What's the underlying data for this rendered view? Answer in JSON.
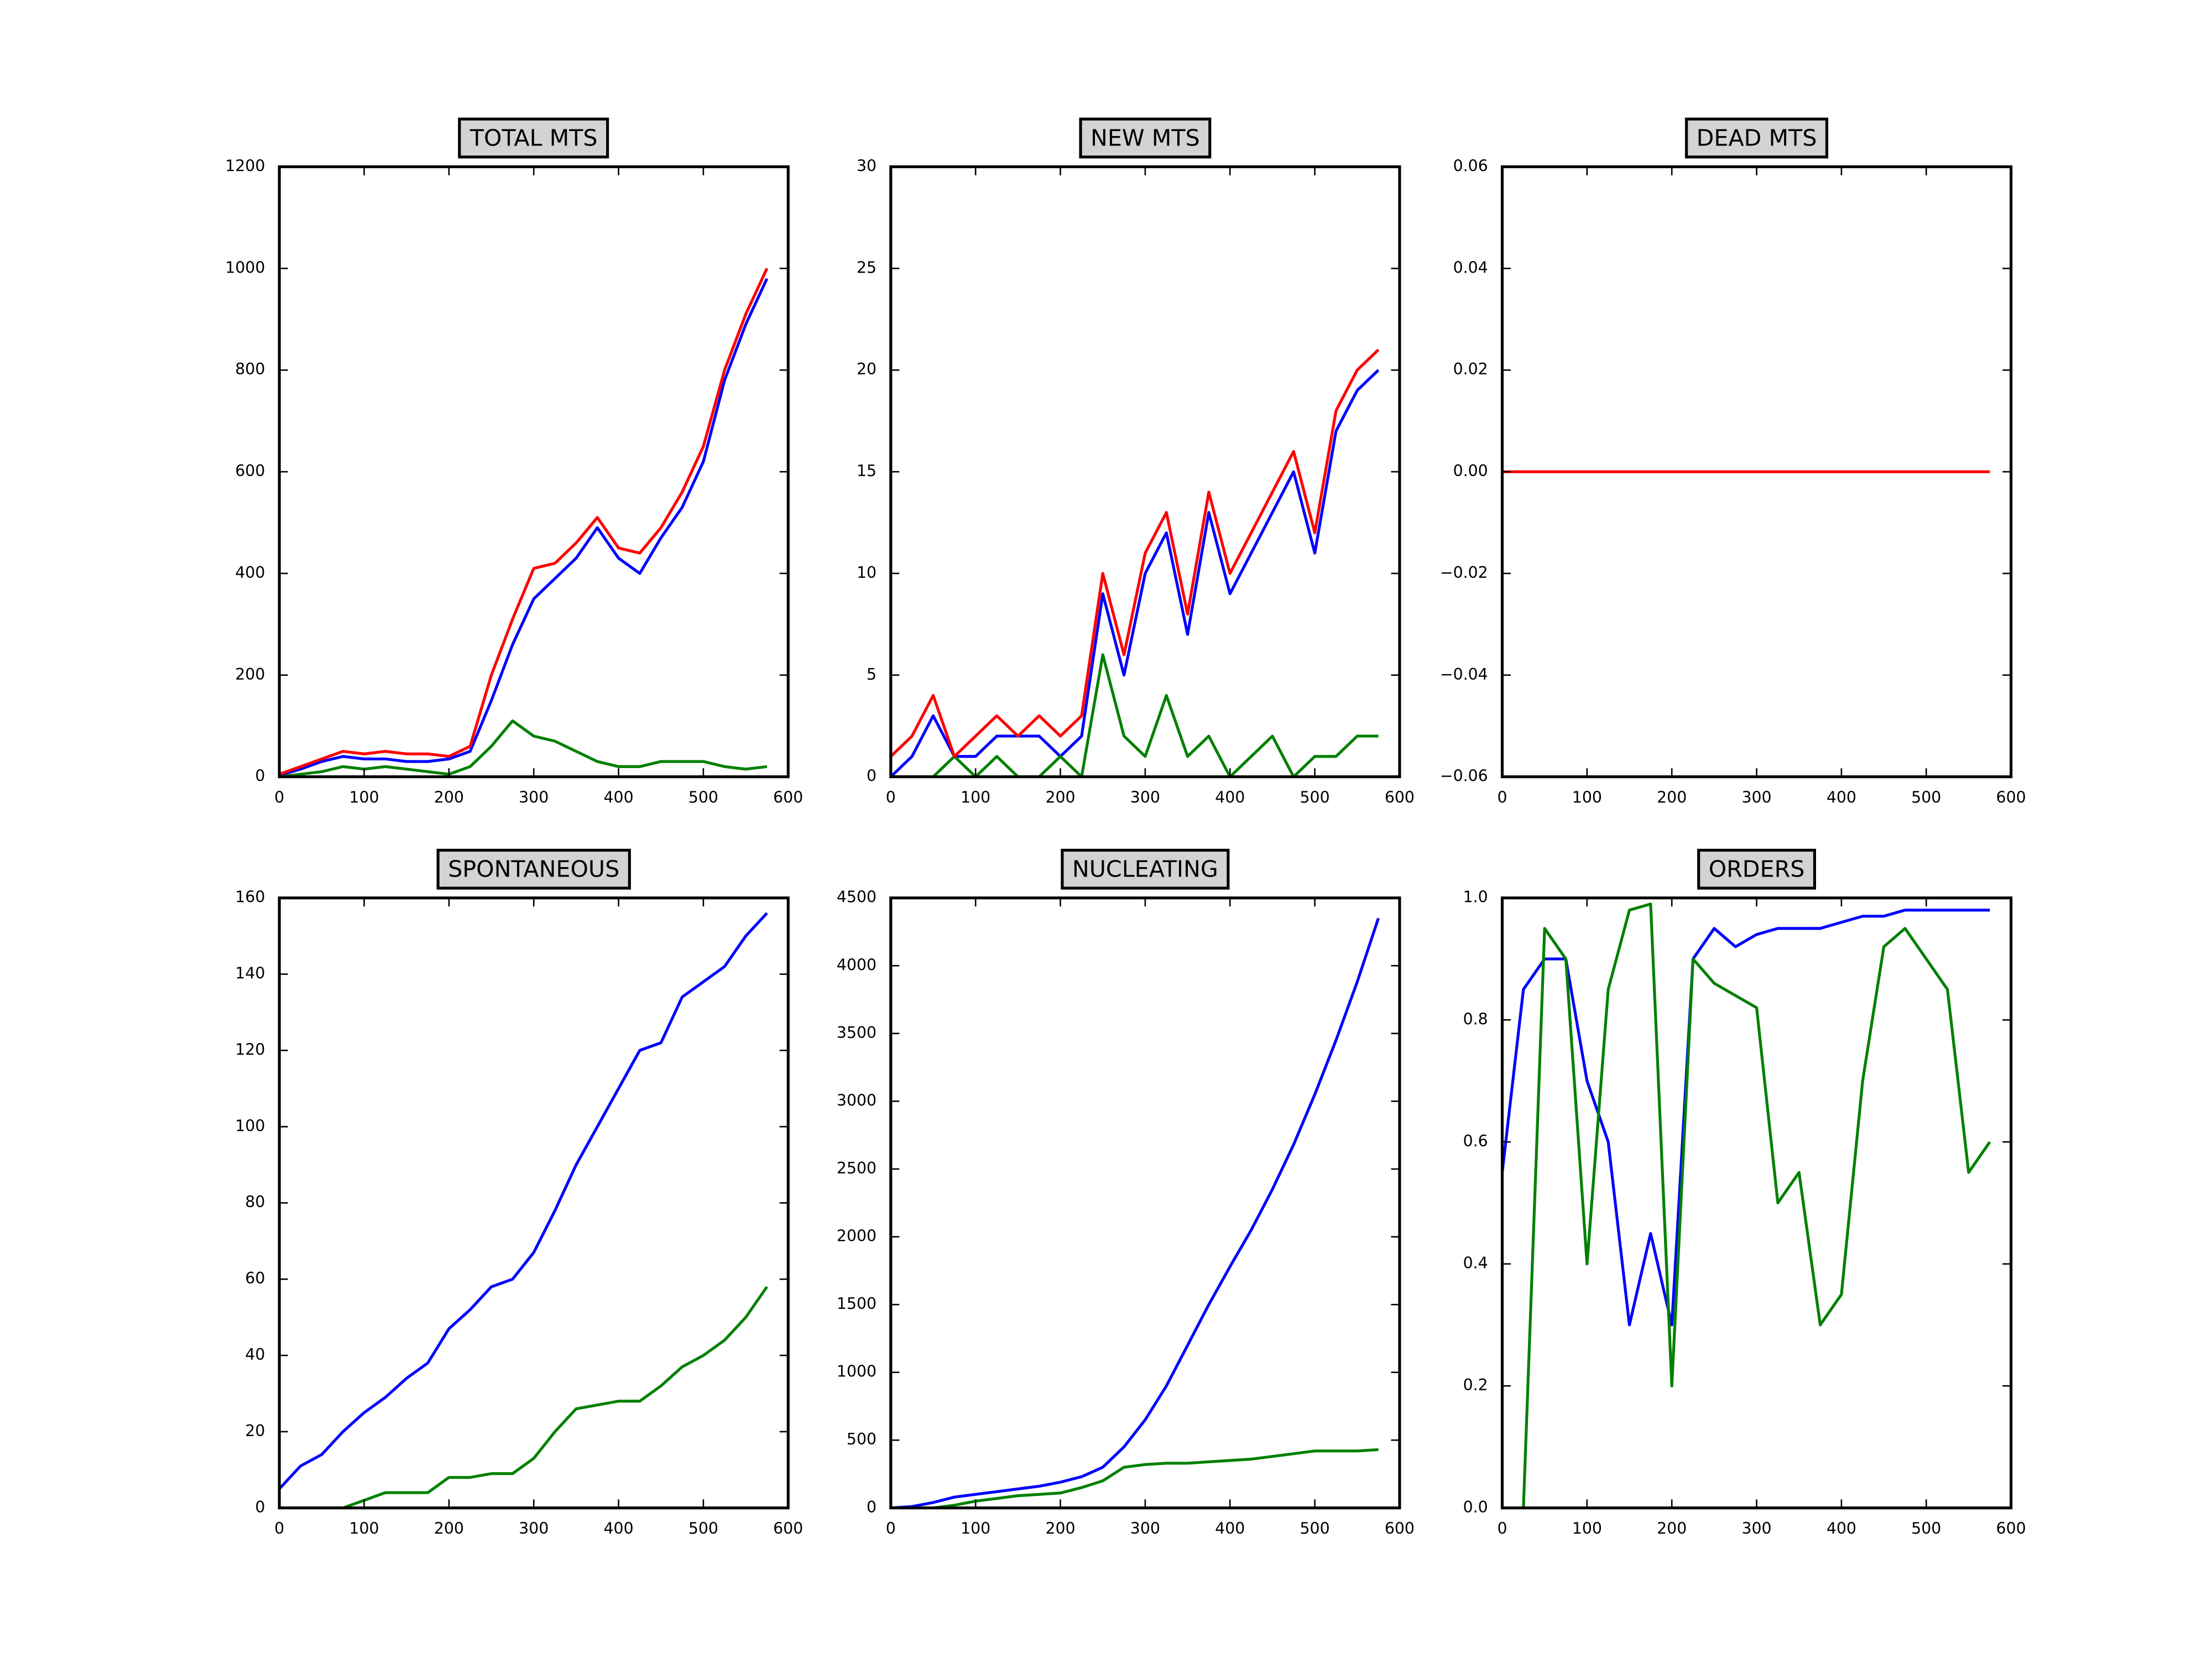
{
  "chart_data": [
    {
      "type": "line",
      "title": "TOTAL MTS",
      "x": [
        0,
        25,
        50,
        75,
        100,
        125,
        150,
        175,
        200,
        225,
        250,
        275,
        300,
        325,
        350,
        375,
        400,
        425,
        450,
        475,
        500,
        525,
        550,
        575
      ],
      "series": [
        {
          "color": "#0000ff",
          "values": [
            3,
            15,
            30,
            40,
            35,
            35,
            30,
            30,
            35,
            50,
            150,
            260,
            350,
            390,
            430,
            490,
            430,
            400,
            470,
            530,
            620,
            780,
            890,
            980
          ]
        },
        {
          "color": "#008000",
          "values": [
            0,
            5,
            10,
            20,
            15,
            20,
            15,
            10,
            5,
            20,
            60,
            110,
            80,
            70,
            50,
            30,
            20,
            20,
            30,
            30,
            30,
            20,
            15,
            20
          ]
        },
        {
          "color": "#ff0000",
          "values": [
            5,
            20,
            35,
            50,
            45,
            50,
            45,
            45,
            40,
            60,
            200,
            310,
            410,
            420,
            460,
            510,
            450,
            440,
            490,
            560,
            650,
            800,
            910,
            1000
          ]
        }
      ],
      "xlim": [
        0,
        600
      ],
      "xticks": [
        0,
        100,
        200,
        300,
        400,
        500,
        600
      ],
      "ylim": [
        0,
        1200
      ],
      "yticks": [
        0,
        200,
        400,
        600,
        800,
        1000,
        1200
      ]
    },
    {
      "type": "line",
      "title": "NEW MTS",
      "x": [
        0,
        25,
        50,
        75,
        100,
        125,
        150,
        175,
        200,
        225,
        250,
        275,
        300,
        325,
        350,
        375,
        400,
        425,
        450,
        475,
        500,
        525,
        550,
        575
      ],
      "series": [
        {
          "color": "#0000ff",
          "values": [
            0,
            1,
            3,
            1,
            1,
            2,
            2,
            2,
            1,
            2,
            9,
            5,
            10,
            12,
            7,
            13,
            9,
            11,
            13,
            15,
            11,
            17,
            19,
            20
          ]
        },
        {
          "color": "#008000",
          "values": [
            0,
            0,
            0,
            1,
            0,
            1,
            0,
            0,
            1,
            0,
            6,
            2,
            1,
            4,
            1,
            2,
            0,
            1,
            2,
            0,
            1,
            1,
            2,
            2
          ]
        },
        {
          "color": "#ff0000",
          "values": [
            1,
            2,
            4,
            1,
            2,
            3,
            2,
            3,
            2,
            3,
            10,
            6,
            11,
            13,
            8,
            14,
            10,
            12,
            14,
            16,
            12,
            18,
            20,
            21
          ]
        }
      ],
      "xlim": [
        0,
        600
      ],
      "xticks": [
        0,
        100,
        200,
        300,
        400,
        500,
        600
      ],
      "ylim": [
        0,
        30
      ],
      "yticks": [
        0,
        5,
        10,
        15,
        20,
        25,
        30
      ]
    },
    {
      "type": "line",
      "title": "DEAD MTS",
      "x": [
        0,
        25,
        50,
        75,
        100,
        125,
        150,
        175,
        200,
        225,
        250,
        275,
        300,
        325,
        350,
        375,
        400,
        425,
        450,
        475,
        500,
        525,
        550,
        575
      ],
      "series": [
        {
          "color": "#ff0000",
          "values": [
            0,
            0,
            0,
            0,
            0,
            0,
            0,
            0,
            0,
            0,
            0,
            0,
            0,
            0,
            0,
            0,
            0,
            0,
            0,
            0,
            0,
            0,
            0,
            0
          ]
        }
      ],
      "xlim": [
        0,
        600
      ],
      "xticks": [
        0,
        100,
        200,
        300,
        400,
        500,
        600
      ],
      "ylim": [
        -0.06,
        0.06
      ],
      "yticks": [
        {
          "value": -0.06,
          "label": "−0.06"
        },
        {
          "value": -0.04,
          "label": "−0.04"
        },
        {
          "value": -0.02,
          "label": "−0.02"
        },
        {
          "value": 0,
          "label": "0.00"
        },
        {
          "value": 0.02,
          "label": "0.02"
        },
        {
          "value": 0.04,
          "label": "0.04"
        },
        {
          "value": 0.06,
          "label": "0.06"
        }
      ]
    },
    {
      "type": "line",
      "title": "SPONTANEOUS",
      "x": [
        0,
        25,
        50,
        75,
        100,
        125,
        150,
        175,
        200,
        225,
        250,
        275,
        300,
        325,
        350,
        375,
        400,
        425,
        450,
        475,
        500,
        525,
        550,
        575
      ],
      "series": [
        {
          "color": "#0000ff",
          "values": [
            5,
            11,
            14,
            20,
            25,
            29,
            34,
            38,
            47,
            52,
            58,
            60,
            67,
            78,
            90,
            100,
            110,
            120,
            122,
            134,
            138,
            142,
            150,
            156
          ]
        },
        {
          "color": "#008000",
          "values": [
            0,
            0,
            0,
            0,
            2,
            4,
            4,
            4,
            8,
            8,
            9,
            9,
            13,
            20,
            26,
            27,
            28,
            28,
            32,
            37,
            40,
            44,
            50,
            58
          ]
        }
      ],
      "xlim": [
        0,
        600
      ],
      "xticks": [
        0,
        100,
        200,
        300,
        400,
        500,
        600
      ],
      "ylim": [
        0,
        160
      ],
      "yticks": [
        0,
        20,
        40,
        60,
        80,
        100,
        120,
        140,
        160
      ]
    },
    {
      "type": "line",
      "title": "NUCLEATING",
      "x": [
        0,
        25,
        50,
        75,
        100,
        125,
        150,
        175,
        200,
        225,
        250,
        275,
        300,
        325,
        350,
        375,
        400,
        425,
        450,
        475,
        500,
        525,
        550,
        575
      ],
      "series": [
        {
          "color": "#0000ff",
          "values": [
            0,
            10,
            40,
            80,
            100,
            120,
            140,
            160,
            190,
            230,
            300,
            450,
            650,
            900,
            1200,
            1500,
            1780,
            2050,
            2350,
            2680,
            3050,
            3450,
            3880,
            4350
          ]
        },
        {
          "color": "#008000",
          "values": [
            0,
            0,
            0,
            20,
            50,
            70,
            90,
            100,
            110,
            150,
            200,
            300,
            320,
            330,
            330,
            340,
            350,
            360,
            380,
            400,
            420,
            420,
            420,
            430
          ]
        }
      ],
      "xlim": [
        0,
        600
      ],
      "xticks": [
        0,
        100,
        200,
        300,
        400,
        500,
        600
      ],
      "ylim": [
        0,
        4500
      ],
      "yticks": [
        0,
        500,
        1000,
        1500,
        2000,
        2500,
        3000,
        3500,
        4000,
        4500
      ]
    },
    {
      "type": "line",
      "title": "ORDERS",
      "x": [
        0,
        25,
        50,
        75,
        100,
        125,
        150,
        175,
        200,
        225,
        250,
        275,
        300,
        325,
        350,
        375,
        400,
        425,
        450,
        475,
        500,
        525,
        550,
        575
      ],
      "series": [
        {
          "color": "#0000ff",
          "values": [
            0.55,
            0.85,
            0.9,
            0.9,
            0.7,
            0.6,
            0.3,
            0.45,
            0.3,
            0.9,
            0.95,
            0.92,
            0.94,
            0.95,
            0.95,
            0.95,
            0.96,
            0.97,
            0.97,
            0.98,
            0.98,
            0.98,
            0.98,
            0.98
          ]
        },
        {
          "color": "#008000",
          "values": [
            null,
            0,
            0.95,
            0.9,
            0.4,
            0.85,
            0.98,
            0.99,
            0.2,
            0.9,
            0.86,
            0.84,
            0.82,
            0.5,
            0.55,
            0.3,
            0.35,
            0.7,
            0.92,
            0.95,
            0.9,
            0.85,
            0.55,
            0.6
          ]
        }
      ],
      "xlim": [
        0,
        600
      ],
      "xticks": [
        0,
        100,
        200,
        300,
        400,
        500,
        600
      ],
      "ylim": [
        0,
        1
      ],
      "yticks": [
        {
          "value": 0,
          "label": "0.0"
        },
        0.2,
        0.4,
        0.6,
        0.8,
        {
          "value": 1,
          "label": "1.0"
        }
      ]
    }
  ]
}
